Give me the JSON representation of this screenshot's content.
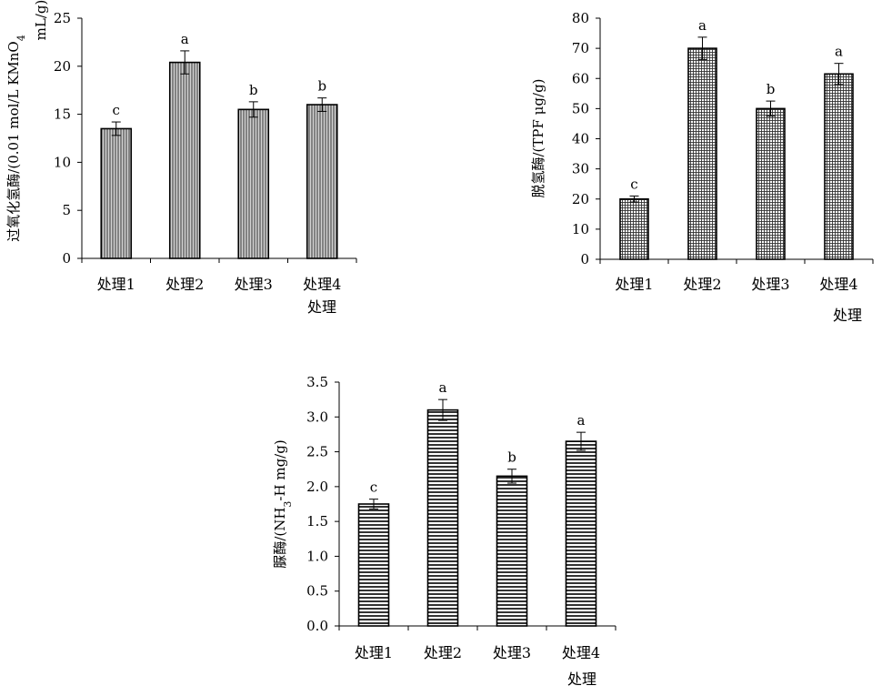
{
  "chart_data": [
    {
      "type": "bar",
      "ylabel_lines": [
        "过氧化氢酶/(0.01 mol/L KMnO",
        "4",
        "mL/g)"
      ],
      "xlabel": "处理",
      "categories": [
        "处理1",
        "处理2",
        "处理3",
        "处理4"
      ],
      "values": [
        13.5,
        20.4,
        15.5,
        16.0
      ],
      "errors": [
        0.7,
        1.2,
        0.8,
        0.7
      ],
      "significance": [
        "c",
        "a",
        "b",
        "b"
      ],
      "ylim": [
        0,
        25
      ],
      "yticks": [
        0,
        5,
        10,
        15,
        20,
        25
      ],
      "ytick_labels": [
        "0",
        "5",
        "10",
        "15",
        "20",
        "25"
      ],
      "pattern": "vertical-lines"
    },
    {
      "type": "bar",
      "ylabel": "脱氢酶/(TPF μg/g)",
      "xlabel": "处理",
      "categories": [
        "处理1",
        "处理2",
        "处理3",
        "处理4"
      ],
      "values": [
        20.0,
        70.0,
        50.0,
        61.5
      ],
      "errors": [
        1.0,
        3.7,
        2.5,
        3.5
      ],
      "significance": [
        "c",
        "a",
        "b",
        "a"
      ],
      "ylim": [
        0,
        80
      ],
      "yticks": [
        0,
        10,
        20,
        30,
        40,
        50,
        60,
        70,
        80
      ],
      "ytick_labels": [
        "0",
        "10",
        "20",
        "30",
        "40",
        "50",
        "60",
        "70",
        "80"
      ],
      "pattern": "grid"
    },
    {
      "type": "bar",
      "ylabel_lines": [
        "脲酶/(NH",
        "3",
        "-H mg/g)"
      ],
      "xlabel": "处理",
      "categories": [
        "处理1",
        "处理2",
        "处理3",
        "处理4"
      ],
      "values": [
        1.75,
        3.1,
        2.15,
        2.65
      ],
      "errors": [
        0.07,
        0.15,
        0.1,
        0.13
      ],
      "significance": [
        "c",
        "a",
        "b",
        "a"
      ],
      "ylim": [
        0,
        3.5
      ],
      "yticks": [
        0,
        0.5,
        1.0,
        1.5,
        2.0,
        2.5,
        3.0,
        3.5
      ],
      "ytick_labels": [
        "0.0",
        "0.5",
        "1.0",
        "1.5",
        "2.0",
        "2.5",
        "3.0",
        "3.5"
      ],
      "pattern": "horizontal-lines"
    }
  ]
}
